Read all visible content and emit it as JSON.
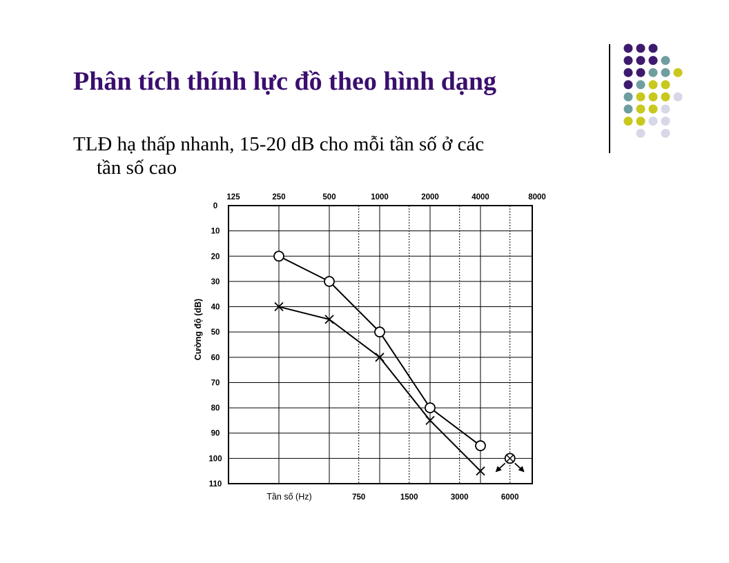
{
  "slide": {
    "title": "Phân tích thính lực đồ theo hình dạng",
    "bullet_line1": "TLĐ hạ thấp nhanh, 15-20 dB cho mỗi tần số ở các",
    "bullet_line2": "tần số cao"
  },
  "colors": {
    "title": "#3a0f6e",
    "dot_purple": "#3d1a6e",
    "dot_teal": "#6f9ea0",
    "dot_olive": "#c8c81e",
    "dot_lavender": "#d7d7e8"
  },
  "chart_data": {
    "type": "line",
    "top_x_ticks": [
      "125",
      "250",
      "500",
      "1000",
      "2000",
      "4000",
      "8000"
    ],
    "bottom_x_ticks": [
      "750",
      "1500",
      "3000",
      "6000"
    ],
    "xlabel": "Tần số (Hz)",
    "ylabel": "Cường độ (dB)",
    "y_ticks": [
      "0",
      "10",
      "20",
      "30",
      "40",
      "50",
      "60",
      "70",
      "80",
      "90",
      "100",
      "110"
    ],
    "ylim": [
      0,
      110
    ],
    "y_inverted": true,
    "grid": true,
    "series": [
      {
        "marker": "circle",
        "x": [
          250,
          500,
          1000,
          2000,
          4000
        ],
        "y": [
          20,
          30,
          50,
          80,
          95
        ]
      },
      {
        "marker": "x",
        "x": [
          250,
          500,
          1000,
          2000,
          4000
        ],
        "y": [
          40,
          45,
          60,
          85,
          105
        ]
      }
    ],
    "no_response": [
      {
        "x": 6000,
        "y": 100,
        "marker": "circle-x-arrows"
      }
    ]
  }
}
